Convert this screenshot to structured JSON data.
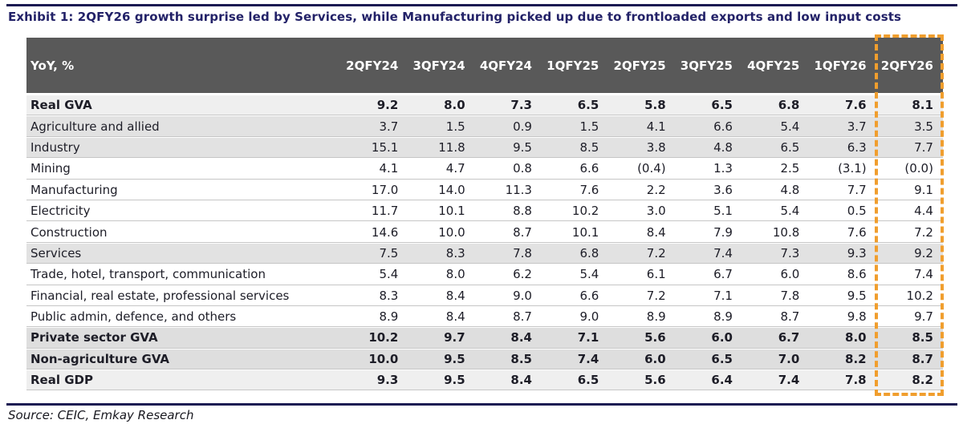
{
  "title": "Exhibit 1: 2QFY26 growth surprise led by Services, while Manufacturing picked up due to frontloaded exports and low input costs",
  "source": "Source: CEIC, Emkay Research",
  "colors": {
    "accent_navy": "#1b1a52",
    "header_bg": "#595959",
    "highlight_orange": "#f09e2e",
    "sector_row_bg": "#e2e2e2",
    "total_row_bg": "#efefef"
  },
  "table": {
    "header_label": "YoY, %",
    "columns": [
      "2QFY24",
      "3QFY24",
      "4QFY24",
      "1QFY25",
      "2QFY25",
      "3QFY25",
      "4QFY25",
      "1QFY26",
      "2QFY26"
    ],
    "highlighted_column": "2QFY26",
    "rows": [
      {
        "label": "Real GVA",
        "style": "total",
        "values": [
          "9.2",
          "8.0",
          "7.3",
          "6.5",
          "5.8",
          "6.5",
          "6.8",
          "7.6",
          "8.1"
        ]
      },
      {
        "label": "Agriculture and allied",
        "style": "sector",
        "values": [
          "3.7",
          "1.5",
          "0.9",
          "1.5",
          "4.1",
          "6.6",
          "5.4",
          "3.7",
          "3.5"
        ]
      },
      {
        "label": "Industry",
        "style": "sector",
        "values": [
          "15.1",
          "11.8",
          "9.5",
          "8.5",
          "3.8",
          "4.8",
          "6.5",
          "6.3",
          "7.7"
        ]
      },
      {
        "label": "Mining",
        "style": "detail",
        "values": [
          "4.1",
          "4.7",
          "0.8",
          "6.6",
          "(0.4)",
          "1.3",
          "2.5",
          "(3.1)",
          "(0.0)"
        ]
      },
      {
        "label": "Manufacturing",
        "style": "detail",
        "values": [
          "17.0",
          "14.0",
          "11.3",
          "7.6",
          "2.2",
          "3.6",
          "4.8",
          "7.7",
          "9.1"
        ]
      },
      {
        "label": "Electricity",
        "style": "detail",
        "values": [
          "11.7",
          "10.1",
          "8.8",
          "10.2",
          "3.0",
          "5.1",
          "5.4",
          "0.5",
          "4.4"
        ]
      },
      {
        "label": "Construction",
        "style": "detail",
        "values": [
          "14.6",
          "10.0",
          "8.7",
          "10.1",
          "8.4",
          "7.9",
          "10.8",
          "7.6",
          "7.2"
        ]
      },
      {
        "label": "Services",
        "style": "sector",
        "values": [
          "7.5",
          "8.3",
          "7.8",
          "6.8",
          "7.2",
          "7.4",
          "7.3",
          "9.3",
          "9.2"
        ]
      },
      {
        "label": "Trade, hotel, transport, communication",
        "style": "detail",
        "values": [
          "5.4",
          "8.0",
          "6.2",
          "5.4",
          "6.1",
          "6.7",
          "6.0",
          "8.6",
          "7.4"
        ]
      },
      {
        "label": "Financial, real estate, professional services",
        "style": "detail",
        "values": [
          "8.3",
          "8.4",
          "9.0",
          "6.6",
          "7.2",
          "7.1",
          "7.8",
          "9.5",
          "10.2"
        ]
      },
      {
        "label": "Public admin, defence, and others",
        "style": "detail",
        "values": [
          "8.9",
          "8.4",
          "8.7",
          "9.0",
          "8.9",
          "8.9",
          "8.7",
          "9.8",
          "9.7"
        ]
      },
      {
        "label": "Private sector GVA",
        "style": "total-dark",
        "values": [
          "10.2",
          "9.7",
          "8.4",
          "7.1",
          "5.6",
          "6.0",
          "6.7",
          "8.0",
          "8.5"
        ]
      },
      {
        "label": "Non-agriculture GVA",
        "style": "total-dark",
        "values": [
          "10.0",
          "9.5",
          "8.5",
          "7.4",
          "6.0",
          "6.5",
          "7.0",
          "8.2",
          "8.7"
        ]
      },
      {
        "label": "Real GDP",
        "style": "total",
        "values": [
          "9.3",
          "9.5",
          "8.4",
          "6.5",
          "5.6",
          "6.4",
          "7.4",
          "7.8",
          "8.2"
        ]
      }
    ]
  }
}
